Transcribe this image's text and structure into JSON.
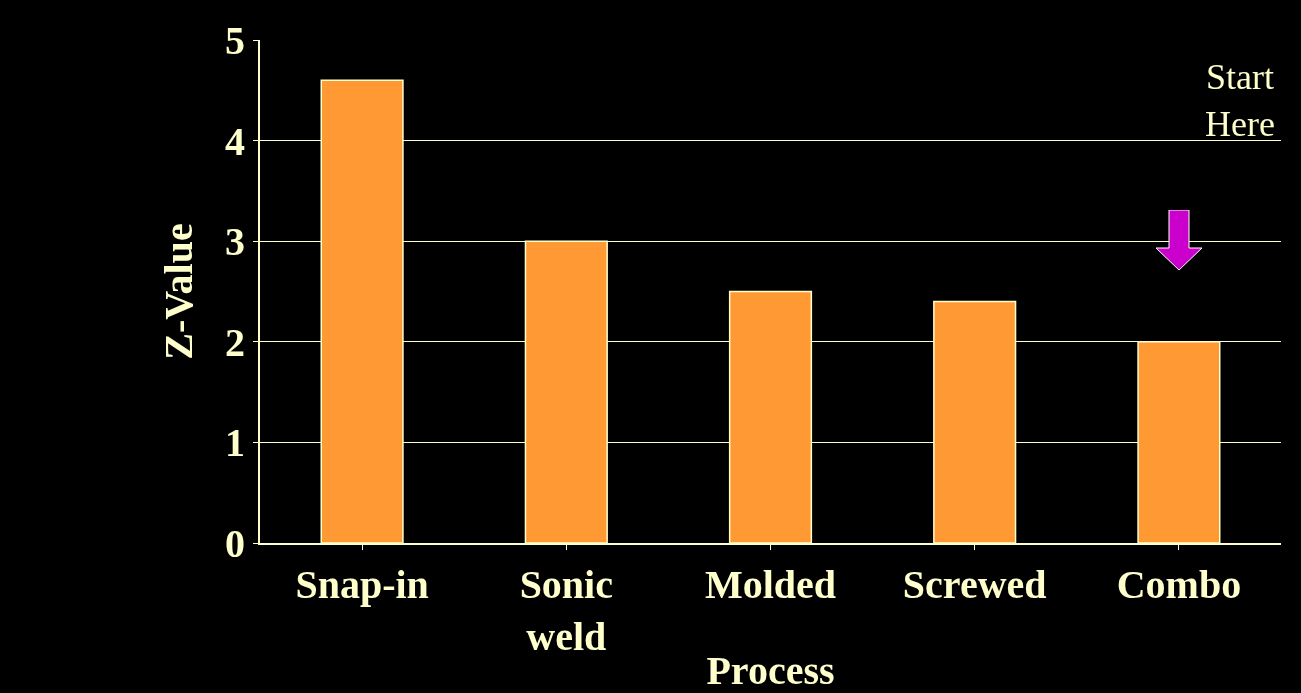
{
  "chart_data": {
    "type": "bar",
    "xlabel": "Process",
    "ylabel": "Z-Value",
    "categories": [
      "Snap-in",
      "Sonic\nweld",
      "Molded",
      "Screwed",
      "Combo"
    ],
    "values": [
      4.6,
      3.0,
      2.5,
      2.4,
      2.0
    ],
    "color": "#ff9933",
    "ylim": [
      0,
      5
    ],
    "yticks": [
      0,
      1,
      2,
      3,
      4,
      5
    ],
    "grid": "y",
    "annotations": [
      "Start\nHere"
    ]
  }
}
